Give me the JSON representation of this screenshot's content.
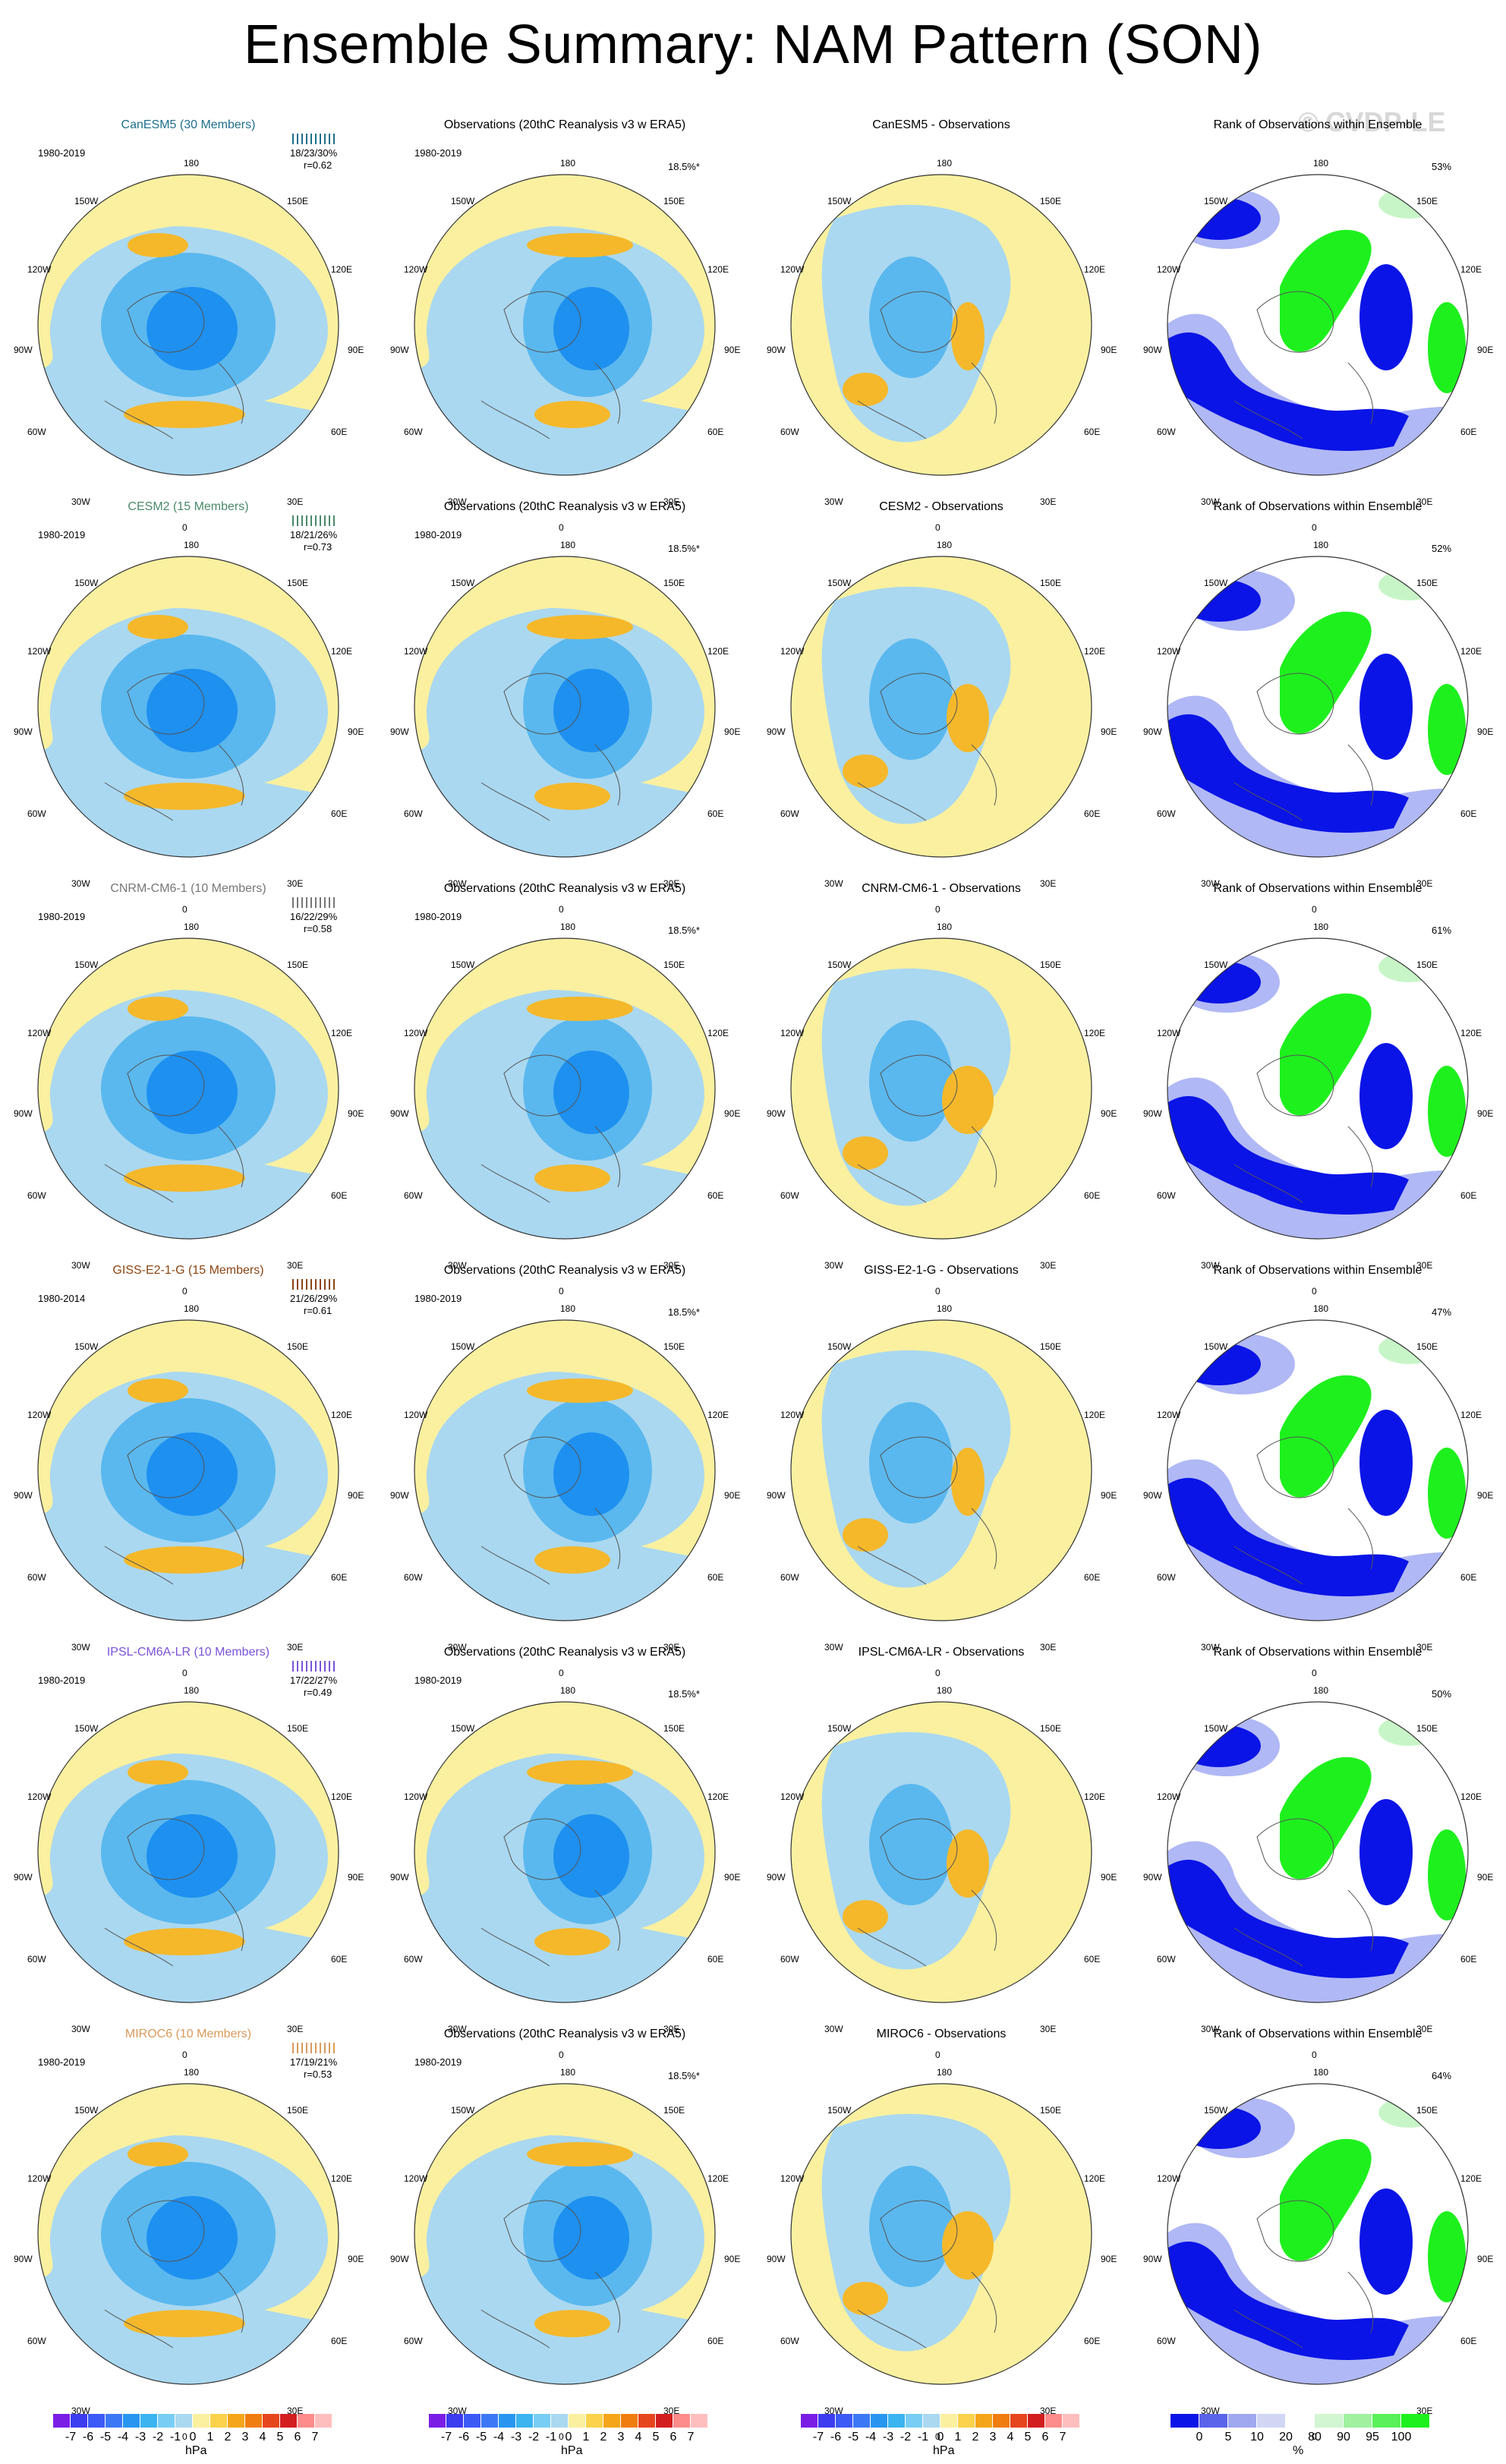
{
  "title": "Ensemble Summary: NAM Pattern (SON)",
  "watermark": "© CVDP-LE",
  "colors": {
    "neutral_pos": "#faf0a0",
    "light_neg": "#aad8f0",
    "mid_neg": "#5ab8ee",
    "deep_neg": "#1e90f0",
    "orange": "#f5b82a",
    "rank_low": "#0a14e6",
    "rank_lowmid": "#b0b8f5",
    "rank_high": "#1ef01e",
    "rank_highmid": "#c8f5c8"
  },
  "icons": [
    "polar-stereographic-map",
    "coastline-outline"
  ],
  "longitude_labels": [
    "180",
    "150E",
    "120E",
    "90E",
    "60E",
    "30E",
    "0",
    "30W",
    "60W",
    "90W",
    "120W",
    "150W"
  ],
  "rows": [
    {
      "model": {
        "title": "CanESM5 (30 Members)",
        "title_color": "#1f6f8b",
        "years": "1980-2019",
        "stat1": "18/23/30%",
        "stat2": "r=0.62"
      },
      "obs": {
        "title": "Observations (20thC Reanalysis v3 w ERA5)",
        "years": "1980-2019",
        "pct": "18.5%*"
      },
      "diff": {
        "title": "CanESM5 - Observations"
      },
      "rank": {
        "title": "Rank of Observations within Ensemble",
        "pct": "53%"
      }
    },
    {
      "model": {
        "title": "CESM2 (15 Members)",
        "title_color": "#4a8a6a",
        "years": "1980-2019",
        "stat1": "18/21/26%",
        "stat2": "r=0.73"
      },
      "obs": {
        "title": "Observations (20thC Reanalysis v3 w ERA5)",
        "years": "1980-2019",
        "pct": "18.5%*"
      },
      "diff": {
        "title": "CESM2 - Observations"
      },
      "rank": {
        "title": "Rank of Observations within Ensemble",
        "pct": "52%"
      }
    },
    {
      "model": {
        "title": "CNRM-CM6-1 (10 Members)",
        "title_color": "#777777",
        "years": "1980-2019",
        "stat1": "16/22/29%",
        "stat2": "r=0.58"
      },
      "obs": {
        "title": "Observations (20thC Reanalysis v3 w ERA5)",
        "years": "1980-2019",
        "pct": "18.5%*"
      },
      "diff": {
        "title": "CNRM-CM6-1 - Observations"
      },
      "rank": {
        "title": "Rank of Observations within Ensemble",
        "pct": "61%"
      }
    },
    {
      "model": {
        "title": "GISS-E2-1-G (15 Members)",
        "title_color": "#8b4513",
        "years": "1980-2014",
        "stat1": "21/26/29%",
        "stat2": "r=0.61"
      },
      "obs": {
        "title": "Observations (20thC Reanalysis v3 w ERA5)",
        "years": "1980-2019",
        "pct": "18.5%*"
      },
      "diff": {
        "title": "GISS-E2-1-G - Observations"
      },
      "rank": {
        "title": "Rank of Observations within Ensemble",
        "pct": "47%"
      }
    },
    {
      "model": {
        "title": "IPSL-CM6A-LR (10 Members)",
        "title_color": "#7b52d9",
        "years": "1980-2019",
        "stat1": "17/22/27%",
        "stat2": "r=0.49"
      },
      "obs": {
        "title": "Observations (20thC Reanalysis v3 w ERA5)",
        "years": "1980-2019",
        "pct": "18.5%*"
      },
      "diff": {
        "title": "IPSL-CM6A-LR - Observations"
      },
      "rank": {
        "title": "Rank of Observations within Ensemble",
        "pct": "50%"
      }
    },
    {
      "model": {
        "title": "MIROC6 (10 Members)",
        "title_color": "#d99a5c",
        "years": "1980-2019",
        "stat1": "17/19/21%",
        "stat2": "r=0.53"
      },
      "obs": {
        "title": "Observations (20thC Reanalysis v3 w ERA5)",
        "years": "1980-2019",
        "pct": "18.5%*"
      },
      "diff": {
        "title": "MIROC6 - Observations"
      },
      "rank": {
        "title": "Rank of Observations within Ensemble",
        "pct": "64%"
      }
    }
  ],
  "colorbar_hpa": {
    "labels": [
      "-7",
      "-6",
      "-5",
      "-4",
      "-3",
      "-2",
      "-1",
      "0",
      "1",
      "2",
      "3",
      "4",
      "5",
      "6",
      "7"
    ],
    "unit": "hPa",
    "colors": [
      "#7a1ee6",
      "#3c3cf0",
      "#3c5af5",
      "#3c78f5",
      "#2896f0",
      "#3cb4f0",
      "#78cdf5",
      "#aad8f0",
      "#faf0a0",
      "#fad24b",
      "#f5a519",
      "#f07d0f",
      "#e6461e",
      "#d21e1e",
      "#ff8c8c",
      "#ffbebe"
    ]
  },
  "colorbar_pct": {
    "labels": [
      "0",
      "5",
      "10",
      "20",
      "80",
      "90",
      "95",
      "100"
    ],
    "unit": "%",
    "colors": [
      "#0a14e6",
      "#5a64eb",
      "#a0a8f0",
      "#d2d6f5",
      "#ffffff",
      "#d2f5d2",
      "#a0f0a0",
      "#5af05a",
      "#1ef01e"
    ]
  }
}
